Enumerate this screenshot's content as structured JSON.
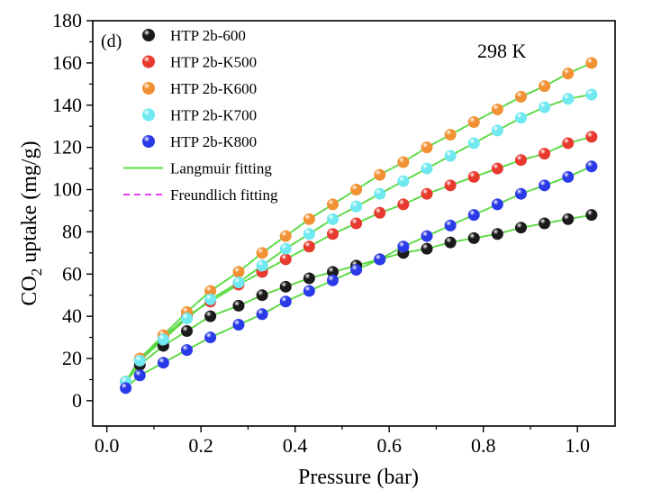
{
  "chart_data": {
    "type": "scatter",
    "panel_label": "(d)",
    "annotation": "298 K",
    "xlabel": "Pressure (bar)",
    "ylabel_main": "CO",
    "ylabel_sub": "2",
    "ylabel_rest": " uptake (mg/g)",
    "xlim": [
      -0.03,
      1.08
    ],
    "ylim": [
      -12,
      180
    ],
    "xticks": [
      0.0,
      0.2,
      0.4,
      0.6,
      0.8,
      1.0
    ],
    "xtick_labels": [
      "0.0",
      "0.2",
      "0.4",
      "0.6",
      "0.8",
      "1.0"
    ],
    "yticks": [
      0,
      20,
      40,
      60,
      80,
      100,
      120,
      140,
      160,
      180
    ],
    "ytick_labels": [
      "0",
      "20",
      "40",
      "60",
      "80",
      "100",
      "120",
      "140",
      "160",
      "180"
    ],
    "grid": false,
    "legend_position": "top-left",
    "x": [
      0.04,
      0.07,
      0.12,
      0.17,
      0.22,
      0.28,
      0.33,
      0.38,
      0.43,
      0.48,
      0.53,
      0.58,
      0.63,
      0.68,
      0.73,
      0.78,
      0.83,
      0.88,
      0.93,
      0.98,
      1.03
    ],
    "series": [
      {
        "name": "HTP 2b-600",
        "color": "#1a1a1a",
        "values": [
          9,
          17,
          26,
          33,
          40,
          45,
          50,
          54,
          58,
          61,
          64,
          67,
          70,
          72,
          75,
          77,
          79,
          82,
          84,
          86,
          88
        ]
      },
      {
        "name": "HTP 2b-K500",
        "color": "#e8392e",
        "values": [
          9,
          19,
          30,
          40,
          47,
          55,
          61,
          67,
          73,
          79,
          84,
          89,
          93,
          98,
          102,
          106,
          110,
          114,
          117,
          122,
          125
        ]
      },
      {
        "name": "HTP 2b-K600",
        "color": "#f29133",
        "values": [
          9,
          20,
          31,
          42,
          52,
          61,
          70,
          78,
          86,
          93,
          100,
          107,
          113,
          120,
          126,
          132,
          138,
          144,
          149,
          155,
          160
        ]
      },
      {
        "name": "HTP 2b-K700",
        "color": "#6fe8f0",
        "values": [
          9,
          19,
          29,
          39,
          48,
          56,
          64,
          72,
          79,
          86,
          92,
          98,
          104,
          110,
          116,
          122,
          128,
          134,
          139,
          143,
          145
        ]
      },
      {
        "name": "HTP 2b-K800",
        "color": "#2a3ae8",
        "values": [
          6,
          12,
          18,
          24,
          30,
          36,
          41,
          47,
          52,
          57,
          62,
          67,
          73,
          78,
          83,
          88,
          93,
          98,
          102,
          106,
          111
        ]
      }
    ],
    "fits": [
      {
        "name": "Langmuir fitting",
        "color": "#55e13c",
        "style": "solid"
      },
      {
        "name": "Freundlich fitting",
        "color": "#e63ff0",
        "style": "dashed"
      }
    ]
  }
}
